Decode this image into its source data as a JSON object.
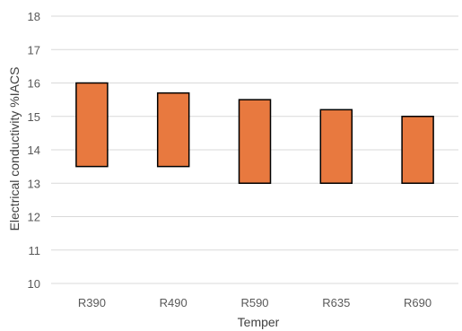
{
  "chart_data": {
    "type": "bar",
    "subtype": "floating-range",
    "title": "",
    "xlabel": "Temper",
    "ylabel": "Electrical conductivity  %IACS",
    "ylim": [
      10,
      18
    ],
    "yticks": [
      10,
      11,
      12,
      13,
      14,
      15,
      16,
      17,
      18
    ],
    "categories": [
      "R390",
      "R490",
      "R590",
      "R635",
      "R690"
    ],
    "series": [
      {
        "low": [
          13.5,
          13.5,
          13.0,
          13.0,
          13.0
        ],
        "high": [
          16.0,
          15.7,
          15.5,
          15.2,
          15.0
        ]
      }
    ],
    "grid": true,
    "legend": "none",
    "colors": {
      "bar_fill": "#E8793F",
      "bar_stroke": "#000000",
      "grid": "#D9D9D9",
      "plot_bg": "#FFFFFF"
    }
  }
}
